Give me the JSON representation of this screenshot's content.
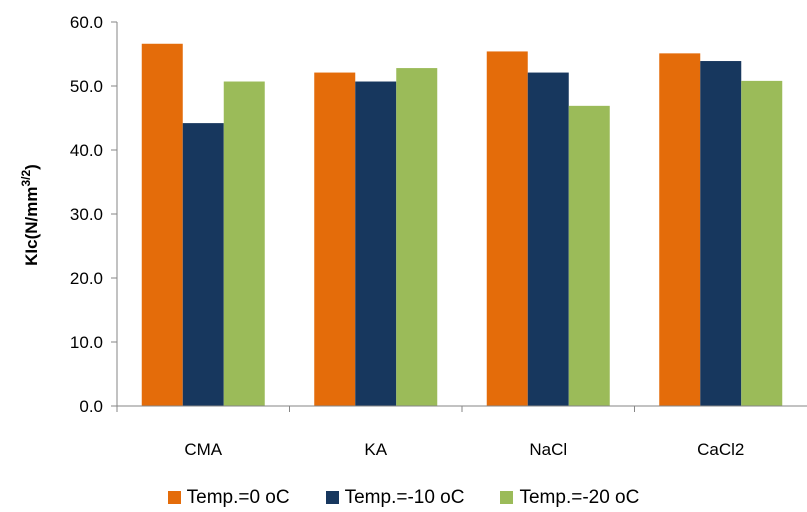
{
  "chart_data": {
    "type": "bar",
    "title": "",
    "xlabel": "",
    "ylabel": "KIc(N/mm³/²)",
    "ylabel_parts": {
      "main": "KIc(N/mm",
      "sup": "3/2",
      "close": ")"
    },
    "categories": [
      "CMA",
      "KA",
      "NaCl",
      "CaCl2"
    ],
    "ylim": [
      0,
      60
    ],
    "yticks": [
      "0.0",
      "10.0",
      "20.0",
      "30.0",
      "40.0",
      "50.0",
      "60.0"
    ],
    "grid": false,
    "legend_position": "bottom",
    "series": [
      {
        "name": "Temp.=0 oC",
        "color": "#E46C0A",
        "values": [
          56.6,
          52.1,
          55.4,
          55.1
        ]
      },
      {
        "name": "Temp.=-10 oC",
        "color": "#17375E",
        "values": [
          44.2,
          50.7,
          52.1,
          53.9
        ]
      },
      {
        "name": "Temp.=-20 oC",
        "color": "#9BBB59",
        "values": [
          50.7,
          52.8,
          46.9,
          50.8
        ]
      }
    ]
  }
}
